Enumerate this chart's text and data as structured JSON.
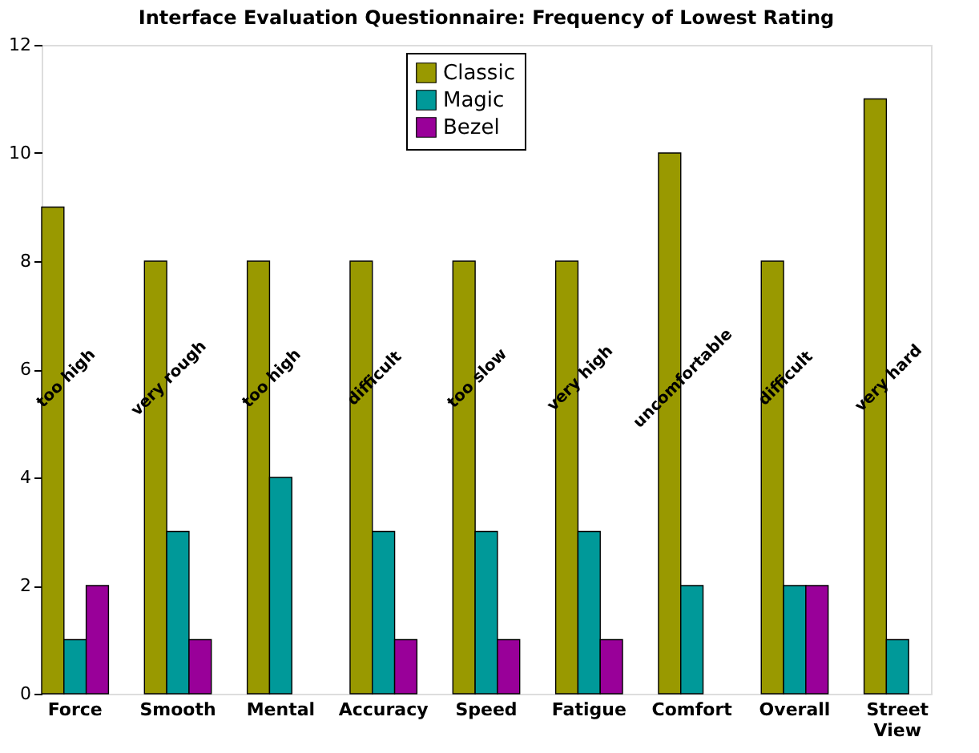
{
  "chart_data": {
    "type": "bar",
    "title": "Interface Evaluation Questionnaire: Frequency of Lowest Rating",
    "categories": [
      "Force",
      "Smooth",
      "Mental",
      "Accuracy",
      "Speed",
      "Fatigue",
      "Comfort",
      "Overall",
      "Street View"
    ],
    "series": [
      {
        "name": "Classic",
        "color": "#999900",
        "values": [
          9,
          8,
          8,
          8,
          8,
          8,
          10,
          8,
          11
        ]
      },
      {
        "name": "Magic",
        "color": "#009999",
        "values": [
          1,
          3,
          4,
          3,
          3,
          3,
          2,
          2,
          1
        ]
      },
      {
        "name": "Bezel",
        "color": "#990099",
        "values": [
          2,
          1,
          0,
          1,
          1,
          1,
          0,
          2,
          0
        ]
      }
    ],
    "ylim": [
      0,
      12
    ],
    "yticks": [
      0,
      2,
      4,
      6,
      8,
      10,
      12
    ],
    "grid": false,
    "legend": "top",
    "annotations": [
      "too high",
      "very rough",
      "too high",
      "difficult",
      "too slow",
      "very high",
      "uncomfortable",
      "difficult",
      "very hard"
    ]
  }
}
